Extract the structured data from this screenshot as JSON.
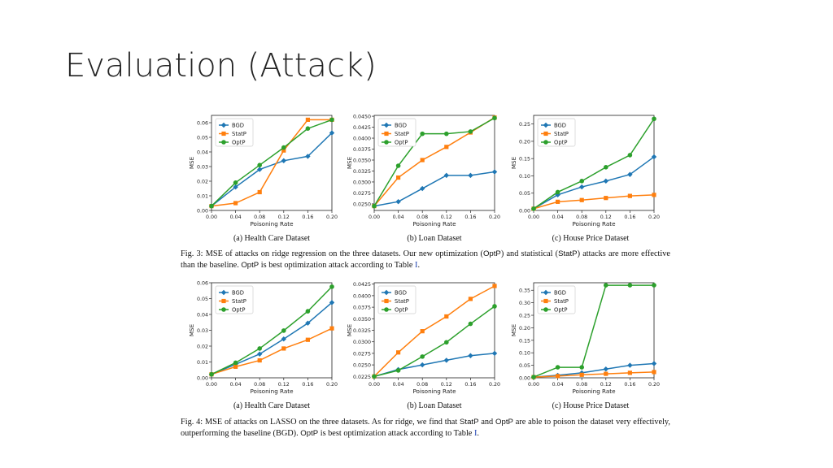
{
  "slide": {
    "title": "Evaluation (Attack)"
  },
  "legend_labels": [
    "BGD",
    "StatP",
    "OptP"
  ],
  "series_colors": {
    "BGD": "#1f77b4",
    "StatP": "#ff7f0e",
    "OptP": "#2ca02c"
  },
  "fig3": {
    "caption_prefix": "Fig. 3: MSE of attacks on ridge regression on the three datasets. Our new optimization (",
    "caption_optp1": "OptP",
    "caption_mid1": ") and statistical (",
    "caption_statp": "StatP",
    "caption_mid2": ") attacks are more effective than the baseline. ",
    "caption_optp2": "OptP",
    "caption_mid3": " is best optimization attack according to Table ",
    "caption_ref": "I",
    "caption_end": ".",
    "subcaptions": [
      "(a) Health Care Dataset",
      "(b) Loan Dataset",
      "(c) House Price Dataset"
    ]
  },
  "fig4": {
    "caption_prefix": "Fig. 4: MSE of attacks on LASSO on the three datasets. As for ridge, we find that ",
    "caption_statp": "StatP",
    "caption_and": " and ",
    "caption_optp1": "OptP",
    "caption_mid1": " are able to poison the dataset very effectively, outperforming the baseline (BGD). ",
    "caption_optp2": "OptP",
    "caption_mid2": " is best optimization attack according to Table ",
    "caption_ref": "I",
    "caption_end": ".",
    "subcaptions": [
      "(a) Health Care Dataset",
      "(b) Loan Dataset",
      "(c) House Price Dataset"
    ]
  },
  "chart_data": [
    {
      "id": "fig3-health",
      "type": "line",
      "xlabel": "Poisoning Rate",
      "ylabel": "MSE",
      "x": [
        0.0,
        0.04,
        0.08,
        0.12,
        0.16,
        0.2
      ],
      "xticks": [
        "0.00",
        "0.04",
        "0.08",
        "0.12",
        "0.16",
        "0.20"
      ],
      "ylim": [
        0,
        0.065
      ],
      "yticks": [
        "0.00",
        "0.01",
        "0.02",
        "0.03",
        "0.04",
        "0.05",
        "0.06"
      ],
      "ytick_values": [
        0,
        0.01,
        0.02,
        0.03,
        0.04,
        0.05,
        0.06
      ],
      "legend": "top-left",
      "series": [
        {
          "name": "BGD",
          "values": [
            0.003,
            0.016,
            0.028,
            0.034,
            0.037,
            0.053
          ]
        },
        {
          "name": "StatP",
          "values": [
            0.003,
            0.005,
            0.0125,
            0.041,
            0.062,
            0.062
          ]
        },
        {
          "name": "OptP",
          "values": [
            0.003,
            0.019,
            0.031,
            0.043,
            0.056,
            0.062
          ]
        }
      ]
    },
    {
      "id": "fig3-loan",
      "type": "line",
      "xlabel": "Poisoning Rate",
      "ylabel": "MSE",
      "x": [
        0.0,
        0.04,
        0.08,
        0.12,
        0.16,
        0.2
      ],
      "xticks": [
        "0.00",
        "0.04",
        "0.08",
        "0.12",
        "0.16",
        "0.20"
      ],
      "ylim": [
        0.0235,
        0.0452
      ],
      "yticks": [
        "0.0250",
        "0.0275",
        "0.0300",
        "0.0325",
        "0.0350",
        "0.0375",
        "0.0400",
        "0.0425",
        "0.0450"
      ],
      "ytick_values": [
        0.025,
        0.0275,
        0.03,
        0.0325,
        0.035,
        0.0375,
        0.04,
        0.0425,
        0.045
      ],
      "legend": "top-left",
      "series": [
        {
          "name": "BGD",
          "values": [
            0.0245,
            0.0255,
            0.0285,
            0.0315,
            0.0315,
            0.0323
          ]
        },
        {
          "name": "StatP",
          "values": [
            0.0245,
            0.031,
            0.035,
            0.038,
            0.0413,
            0.0447
          ]
        },
        {
          "name": "OptP",
          "values": [
            0.0245,
            0.0337,
            0.041,
            0.041,
            0.0415,
            0.0446
          ]
        }
      ]
    },
    {
      "id": "fig3-house",
      "type": "line",
      "xlabel": "Poisoning Rate",
      "ylabel": "MSE",
      "x": [
        0.0,
        0.04,
        0.08,
        0.12,
        0.16,
        0.2
      ],
      "xticks": [
        "0.00",
        "0.04",
        "0.08",
        "0.12",
        "0.16",
        "0.20"
      ],
      "ylim": [
        0,
        0.275
      ],
      "yticks": [
        "0.00",
        "0.05",
        "0.10",
        "0.15",
        "0.20",
        "0.25"
      ],
      "ytick_values": [
        0,
        0.05,
        0.1,
        0.15,
        0.2,
        0.25
      ],
      "legend": "top-left",
      "series": [
        {
          "name": "BGD",
          "values": [
            0.005,
            0.045,
            0.068,
            0.085,
            0.104,
            0.155
          ]
        },
        {
          "name": "StatP",
          "values": [
            0.005,
            0.025,
            0.03,
            0.036,
            0.042,
            0.045
          ]
        },
        {
          "name": "OptP",
          "values": [
            0.005,
            0.053,
            0.085,
            0.125,
            0.16,
            0.265
          ]
        }
      ]
    },
    {
      "id": "fig4-health",
      "type": "line",
      "xlabel": "Poisoning Rate",
      "ylabel": "MSE",
      "x": [
        0.0,
        0.04,
        0.08,
        0.12,
        0.16,
        0.2
      ],
      "xticks": [
        "0.00",
        "0.04",
        "0.08",
        "0.12",
        "0.16",
        "0.20"
      ],
      "ylim": [
        0,
        0.06
      ],
      "yticks": [
        "0.00",
        "0.01",
        "0.02",
        "0.03",
        "0.04",
        "0.05",
        "0.06"
      ],
      "ytick_values": [
        0,
        0.01,
        0.02,
        0.03,
        0.04,
        0.05,
        0.06
      ],
      "legend": "top-left",
      "series": [
        {
          "name": "BGD",
          "values": [
            0.0022,
            0.0085,
            0.015,
            0.0245,
            0.0345,
            0.0475
          ]
        },
        {
          "name": "StatP",
          "values": [
            0.0022,
            0.007,
            0.011,
            0.0185,
            0.024,
            0.0312
          ]
        },
        {
          "name": "OptP",
          "values": [
            0.0022,
            0.0095,
            0.0185,
            0.0298,
            0.042,
            0.0575
          ]
        }
      ]
    },
    {
      "id": "fig4-loan",
      "type": "line",
      "xlabel": "Poisoning Rate",
      "ylabel": "MSE",
      "x": [
        0.0,
        0.04,
        0.08,
        0.12,
        0.16,
        0.2
      ],
      "xticks": [
        "0.00",
        "0.04",
        "0.08",
        "0.12",
        "0.16",
        "0.20"
      ],
      "ylim": [
        0.0222,
        0.0428
      ],
      "yticks": [
        "0.0225",
        "0.0250",
        "0.0275",
        "0.0300",
        "0.0325",
        "0.0350",
        "0.0375",
        "0.0400",
        "0.0425"
      ],
      "ytick_values": [
        0.0225,
        0.025,
        0.0275,
        0.03,
        0.0325,
        0.035,
        0.0375,
        0.04,
        0.0425
      ],
      "legend": "top-left",
      "series": [
        {
          "name": "BGD",
          "values": [
            0.0225,
            0.024,
            0.025,
            0.026,
            0.027,
            0.0275
          ]
        },
        {
          "name": "StatP",
          "values": [
            0.0225,
            0.0277,
            0.0323,
            0.0355,
            0.0393,
            0.0421
          ]
        },
        {
          "name": "OptP",
          "values": [
            0.0225,
            0.0238,
            0.0268,
            0.0299,
            0.0339,
            0.0377
          ]
        }
      ]
    },
    {
      "id": "fig4-house",
      "type": "line",
      "xlabel": "Poisoning Rate",
      "ylabel": "MSE",
      "x": [
        0.0,
        0.04,
        0.08,
        0.12,
        0.16,
        0.2
      ],
      "xticks": [
        "0.00",
        "0.04",
        "0.08",
        "0.12",
        "0.16",
        "0.20"
      ],
      "ylim": [
        0,
        0.38
      ],
      "yticks": [
        "0.00",
        "0.05",
        "0.10",
        "0.15",
        "0.20",
        "0.25",
        "0.30",
        "0.35"
      ],
      "ytick_values": [
        0,
        0.05,
        0.1,
        0.15,
        0.2,
        0.25,
        0.3,
        0.35
      ],
      "legend": "top-left",
      "series": [
        {
          "name": "BGD",
          "values": [
            0.003,
            0.01,
            0.02,
            0.035,
            0.05,
            0.057
          ]
        },
        {
          "name": "StatP",
          "values": [
            0.003,
            0.007,
            0.012,
            0.016,
            0.02,
            0.023
          ]
        },
        {
          "name": "OptP",
          "values": [
            0.003,
            0.042,
            0.042,
            0.37,
            0.37,
            0.37
          ]
        }
      ]
    }
  ]
}
